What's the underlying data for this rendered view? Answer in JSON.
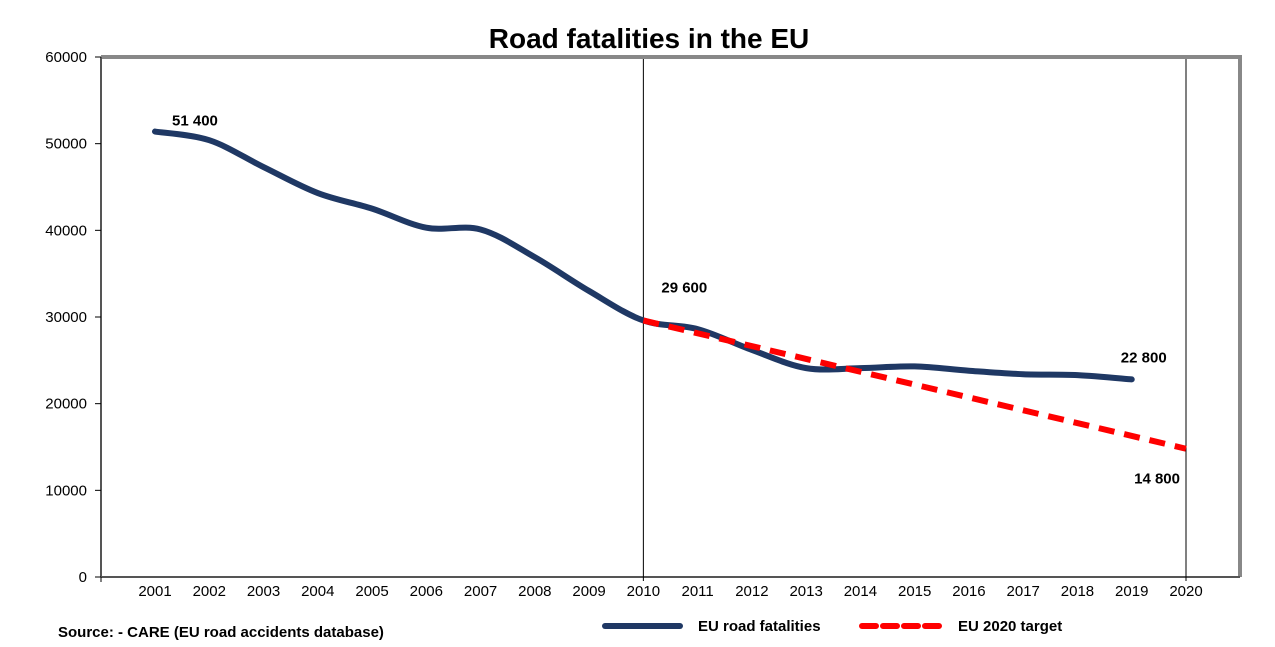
{
  "chart_data": {
    "type": "line",
    "title": "Road fatalities in the EU",
    "xlabel": "",
    "ylabel": "",
    "x": [
      "2001",
      "2002",
      "2003",
      "2004",
      "2005",
      "2006",
      "2007",
      "2008",
      "2009",
      "2010",
      "2011",
      "2012",
      "2013",
      "2014",
      "2015",
      "2016",
      "2017",
      "2018",
      "2019",
      "2020"
    ],
    "ylim": [
      0,
      60000
    ],
    "yticks": [
      "0",
      "10000",
      "20000",
      "30000",
      "40000",
      "50000",
      "60000"
    ],
    "ytick_values": [
      0,
      10000,
      20000,
      30000,
      40000,
      50000,
      60000
    ],
    "grid": false,
    "reference_lines": [
      {
        "x": "2010",
        "color": "#000000"
      },
      {
        "x": "2020",
        "color": "#000000"
      }
    ],
    "series": [
      {
        "name": "EU road fatalities",
        "color": "#1f3864",
        "style": "solid",
        "x": [
          "2001",
          "2002",
          "2003",
          "2004",
          "2005",
          "2006",
          "2007",
          "2008",
          "2009",
          "2010",
          "2011",
          "2012",
          "2013",
          "2014",
          "2015",
          "2016",
          "2017",
          "2018",
          "2019"
        ],
        "values": [
          51400,
          50400,
          47300,
          44300,
          42500,
          40300,
          40100,
          36900,
          33000,
          29600,
          28600,
          26200,
          24100,
          24100,
          24300,
          23800,
          23400,
          23300,
          22800
        ]
      },
      {
        "name": "EU 2020  target",
        "color": "#ff0000",
        "style": "dashed",
        "x": [
          "2010",
          "2011",
          "2012",
          "2013",
          "2014",
          "2015",
          "2016",
          "2017",
          "2018",
          "2019",
          "2020"
        ],
        "values": [
          29600,
          28120,
          26640,
          25160,
          23680,
          22200,
          20720,
          19240,
          17760,
          16280,
          14800
        ]
      }
    ],
    "annotations": [
      {
        "text": "51 400",
        "x": "2001",
        "value": 51400,
        "position": "above-right"
      },
      {
        "text": "29 600",
        "x": "2010",
        "value": 29600,
        "position": "above-right"
      },
      {
        "text": "22 800",
        "x": "2019",
        "value": 22800,
        "position": "above"
      },
      {
        "text": "14 800",
        "x": "2020",
        "value": 14800,
        "position": "below-left"
      }
    ],
    "legend": {
      "placement": "bottom-right",
      "entries": [
        "EU road fatalities",
        "EU 2020  target"
      ]
    },
    "source": "Source: - CARE (EU road accidents database)"
  }
}
